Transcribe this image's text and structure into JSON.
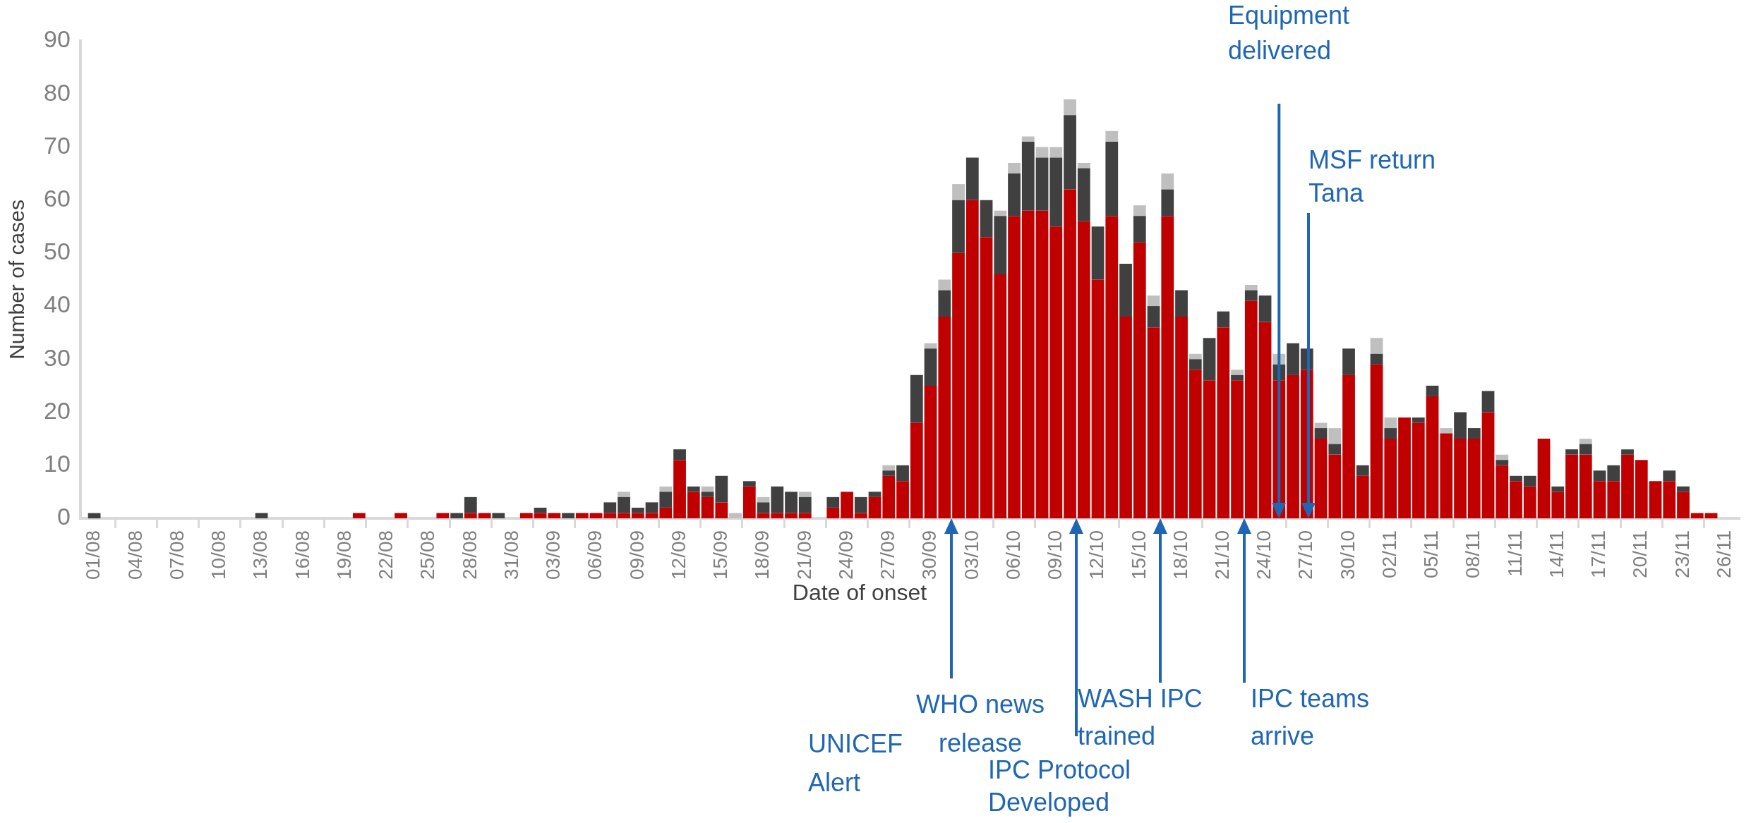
{
  "chart_data": {
    "type": "bar",
    "stacked": true,
    "xlabel": "Date of onset",
    "ylabel": "Number of cases",
    "x": [
      "--08-01",
      "--08-02",
      "--08-03",
      "--08-04",
      "--08-05",
      "--08-06",
      "--08-07",
      "--08-08",
      "--08-09",
      "--08-10",
      "--08-11",
      "--08-12",
      "--08-13",
      "--08-14",
      "--08-15",
      "--08-16",
      "--08-17",
      "--08-18",
      "--08-19",
      "--08-20",
      "--08-21",
      "--08-22",
      "--08-23",
      "--08-24",
      "--08-25",
      "--08-26",
      "--08-27",
      "--08-28",
      "--08-29",
      "--08-30",
      "--08-31",
      "--09-01",
      "--09-02",
      "--09-03",
      "--09-04",
      "--09-05",
      "--09-06",
      "--09-07",
      "--09-08",
      "--09-09",
      "--09-10",
      "--09-11",
      "--09-12",
      "--09-13",
      "--09-14",
      "--09-15",
      "--09-16",
      "--09-17",
      "--09-18",
      "--09-19",
      "--09-20",
      "--09-21",
      "--09-22",
      "--09-23",
      "--09-24",
      "--09-25",
      "--09-26",
      "--09-27",
      "--09-28",
      "--09-29",
      "--09-30",
      "--10-01",
      "--10-02",
      "--10-03",
      "--10-04",
      "--10-05",
      "--10-06",
      "--10-07",
      "--10-08",
      "--10-09",
      "--10-10",
      "--10-11",
      "--10-12",
      "--10-13",
      "--10-14",
      "--10-15",
      "--10-16",
      "--10-17",
      "--10-18",
      "--10-19",
      "--10-20",
      "--10-21",
      "--10-22",
      "--10-23",
      "--10-24",
      "--10-25",
      "--10-26",
      "--10-27",
      "--10-28",
      "--10-29",
      "--10-30",
      "--10-31",
      "--11-01",
      "--11-02",
      "--11-03",
      "--11-04",
      "--11-05",
      "--11-06",
      "--11-07",
      "--11-08",
      "--11-09",
      "--11-10",
      "--11-11",
      "--11-12",
      "--11-13",
      "--11-14",
      "--11-15",
      "--11-16",
      "--11-17",
      "--11-18",
      "--11-19",
      "--11-20",
      "--11-21",
      "--11-22",
      "--11-23",
      "--11-24",
      "--11-25",
      "--11-26"
    ],
    "series": [
      {
        "color": "#c00000",
        "values": [
          0,
          0,
          0,
          0,
          0,
          0,
          0,
          0,
          0,
          0,
          0,
          0,
          0,
          0,
          0,
          0,
          0,
          0,
          0,
          1,
          0,
          0,
          1,
          0,
          0,
          1,
          0,
          1,
          1,
          0,
          0,
          1,
          1,
          1,
          0,
          1,
          1,
          1,
          1,
          1,
          1,
          2,
          11,
          5,
          4,
          3,
          0,
          6,
          1,
          1,
          1,
          1,
          0,
          2,
          5,
          1,
          4,
          8,
          7,
          18,
          25,
          38,
          50,
          60,
          53,
          46,
          57,
          58,
          58,
          55,
          62,
          56,
          45,
          57,
          38,
          52,
          36,
          57,
          38,
          28,
          26,
          36,
          26,
          41,
          37,
          26,
          27,
          28,
          15,
          12,
          27,
          8,
          29,
          15,
          19,
          18,
          23,
          16,
          15,
          15,
          20,
          10,
          7,
          6,
          15,
          5,
          12,
          12,
          7,
          7,
          12,
          11,
          7,
          7,
          5,
          1,
          1,
          0
        ]
      },
      {
        "color": "#404040",
        "values": [
          1,
          0,
          0,
          0,
          0,
          0,
          0,
          0,
          0,
          0,
          0,
          0,
          1,
          0,
          0,
          0,
          0,
          0,
          0,
          0,
          0,
          0,
          0,
          0,
          0,
          0,
          1,
          3,
          0,
          1,
          0,
          0,
          1,
          0,
          1,
          0,
          0,
          2,
          3,
          1,
          2,
          3,
          2,
          1,
          1,
          5,
          0,
          1,
          2,
          5,
          4,
          3,
          0,
          2,
          0,
          3,
          1,
          1,
          3,
          9,
          7,
          5,
          10,
          8,
          7,
          11,
          8,
          13,
          10,
          13,
          14,
          10,
          10,
          14,
          10,
          5,
          4,
          5,
          5,
          2,
          8,
          3,
          1,
          2,
          5,
          3,
          6,
          4,
          2,
          2,
          5,
          2,
          2,
          2,
          0,
          1,
          2,
          0,
          5,
          2,
          4,
          1,
          1,
          2,
          0,
          1,
          1,
          2,
          2,
          3,
          1,
          0,
          0,
          2,
          1,
          0,
          0,
          0
        ]
      },
      {
        "color": "#bfbfbf",
        "values": [
          0,
          0,
          0,
          0,
          0,
          0,
          0,
          0,
          0,
          0,
          0,
          0,
          0,
          0,
          0,
          0,
          0,
          0,
          0,
          0,
          0,
          0,
          0,
          0,
          0,
          0,
          0,
          0,
          0,
          0,
          0,
          0,
          0,
          0,
          0,
          0,
          0,
          0,
          1,
          0,
          0,
          1,
          0,
          0,
          1,
          0,
          1,
          0,
          1,
          0,
          0,
          1,
          0,
          0,
          0,
          0,
          0,
          1,
          0,
          0,
          1,
          2,
          3,
          0,
          0,
          1,
          2,
          1,
          2,
          2,
          3,
          1,
          0,
          2,
          0,
          2,
          2,
          3,
          0,
          1,
          0,
          0,
          1,
          1,
          0,
          2,
          0,
          0,
          1,
          3,
          0,
          0,
          3,
          2,
          0,
          0,
          0,
          1,
          0,
          0,
          0,
          1,
          0,
          0,
          0,
          0,
          0,
          1,
          0,
          0,
          0,
          0,
          0,
          0,
          0,
          0,
          0,
          0
        ]
      }
    ],
    "xlim": [
      "--07-31",
      "--11-27"
    ],
    "xticks": [
      {
        "value": "--08-01",
        "label": "01/08"
      },
      {
        "value": "--08-04",
        "label": "04/08"
      },
      {
        "value": "--08-07",
        "label": "07/08"
      },
      {
        "value": "--08-10",
        "label": "10/08"
      },
      {
        "value": "--08-13",
        "label": "13/08"
      },
      {
        "value": "--08-16",
        "label": "16/08"
      },
      {
        "value": "--08-19",
        "label": "19/08"
      },
      {
        "value": "--08-22",
        "label": "22/08"
      },
      {
        "value": "--08-25",
        "label": "25/08"
      },
      {
        "value": "--08-28",
        "label": "28/08"
      },
      {
        "value": "--08-31",
        "label": "31/08"
      },
      {
        "value": "--09-03",
        "label": "03/09"
      },
      {
        "value": "--09-06",
        "label": "06/09"
      },
      {
        "value": "--09-09",
        "label": "09/09"
      },
      {
        "value": "--09-12",
        "label": "12/09"
      },
      {
        "value": "--09-15",
        "label": "15/09"
      },
      {
        "value": "--09-18",
        "label": "18/09"
      },
      {
        "value": "--09-21",
        "label": "21/09"
      },
      {
        "value": "--09-24",
        "label": "24/09"
      },
      {
        "value": "--09-27",
        "label": "27/09"
      },
      {
        "value": "--09-30",
        "label": "30/09"
      },
      {
        "value": "--10-03",
        "label": "03/10"
      },
      {
        "value": "--10-06",
        "label": "06/10"
      },
      {
        "value": "--10-09",
        "label": "09/10"
      },
      {
        "value": "--10-12",
        "label": "12/10"
      },
      {
        "value": "--10-15",
        "label": "15/10"
      },
      {
        "value": "--10-18",
        "label": "18/10"
      },
      {
        "value": "--10-21",
        "label": "21/10"
      },
      {
        "value": "--10-24",
        "label": "24/10"
      },
      {
        "value": "--10-27",
        "label": "27/10"
      },
      {
        "value": "--10-30",
        "label": "30/10"
      },
      {
        "value": "--11-02",
        "label": "02/11"
      },
      {
        "value": "--11-05",
        "label": "05/11"
      },
      {
        "value": "--11-08",
        "label": "08/11"
      },
      {
        "value": "--11-11",
        "label": "11/11"
      },
      {
        "value": "--11-14",
        "label": "14/11"
      },
      {
        "value": "--11-17",
        "label": "17/11"
      },
      {
        "value": "--11-20",
        "label": "20/11"
      },
      {
        "value": "--11-23",
        "label": "23/11"
      },
      {
        "value": "--11-26",
        "label": "26/11"
      }
    ],
    "ylim": [
      0,
      90
    ],
    "yticks": [
      0,
      10,
      20,
      30,
      40,
      50,
      60,
      70,
      80,
      90
    ],
    "grid": false,
    "annotations": [
      "UNICEF Alert",
      "WHO news release",
      "IPC Protocol Developed",
      "WASH IPC trained",
      "IPC teams arrive",
      "MSF return Tana"
    ],
    "ref_lines": [
      {
        "axis": "x",
        "value": "--10-25",
        "label": "Equipment delivered",
        "color": "#1f66b5"
      }
    ]
  }
}
